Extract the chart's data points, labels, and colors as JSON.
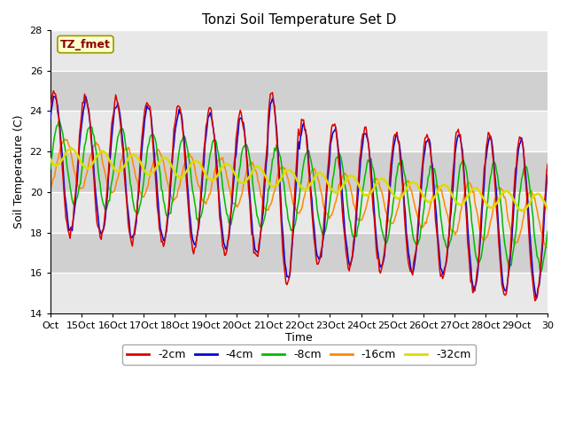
{
  "title": "Tonzi Soil Temperature Set D",
  "xlabel": "Time",
  "ylabel": "Soil Temperature (C)",
  "ylim": [
    14,
    28
  ],
  "yticks": [
    14,
    16,
    18,
    20,
    22,
    24,
    26,
    28
  ],
  "tick_labels": [
    "Oct",
    "15Oct",
    "16Oct",
    "17Oct",
    "18Oct",
    "19Oct",
    "20Oct",
    "21Oct",
    "22Oct",
    "23Oct",
    "24Oct",
    "25Oct",
    "26Oct",
    "27Oct",
    "28Oct",
    "29Oct",
    "30"
  ],
  "legend_labels": [
    "-2cm",
    "-4cm",
    "-8cm",
    "-16cm",
    "-32cm"
  ],
  "legend_colors": [
    "#dd0000",
    "#0000dd",
    "#00bb00",
    "#ff8800",
    "#dddd00"
  ],
  "annotation_text": "TZ_fmet",
  "annotation_color": "#880000",
  "annotation_bg": "#ffffcc",
  "plot_bg": "#dcdcdc",
  "n_points": 480
}
